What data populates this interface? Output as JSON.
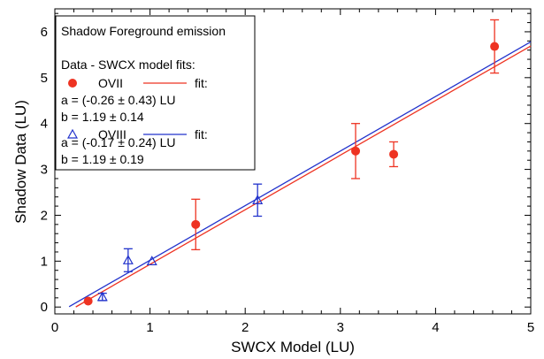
{
  "chart_data": {
    "type": "scatter",
    "xlabel": "SWCX Model (LU)",
    "ylabel": "Shadow Data (LU)",
    "xlim": [
      0,
      5
    ],
    "ylim": [
      -0.15,
      6.5
    ],
    "xticks": [
      0,
      1,
      2,
      3,
      4,
      5
    ],
    "yticks": [
      0,
      1,
      2,
      3,
      4,
      5,
      6
    ],
    "grid": false,
    "legend_placement": "top-left",
    "series": [
      {
        "name": "OVII",
        "marker": "filled-circle",
        "color": "#ee3322",
        "points": [
          {
            "x": 0.35,
            "y": 0.13,
            "err": 0.0
          },
          {
            "x": 1.48,
            "y": 1.8,
            "err": 0.55
          },
          {
            "x": 3.16,
            "y": 3.4,
            "err": 0.6
          },
          {
            "x": 3.56,
            "y": 3.33,
            "err": 0.27
          },
          {
            "x": 4.62,
            "y": 5.68,
            "err": 0.58
          }
        ],
        "fit": {
          "a": -0.26,
          "b": 1.19
        }
      },
      {
        "name": "OVIII",
        "marker": "open-triangle",
        "color": "#2233cc",
        "points": [
          {
            "x": 0.5,
            "y": 0.22,
            "err": 0.08
          },
          {
            "x": 0.77,
            "y": 1.02,
            "err": 0.25
          },
          {
            "x": 1.02,
            "y": 1.0,
            "err": 0.0
          },
          {
            "x": 2.13,
            "y": 2.33,
            "err": 0.35
          }
        ],
        "fit": {
          "a": -0.17,
          "b": 1.19
        }
      }
    ],
    "fit_lines": [
      {
        "series": "OVII",
        "x_range": [
          0.22,
          5.0
        ],
        "color": "#ee3322"
      },
      {
        "series": "OVIII",
        "x_range": [
          0.15,
          5.0
        ],
        "color": "#2233cc"
      }
    ],
    "legend": {
      "title": "Shadow Foreground emission",
      "subtitle": "Data - SWCX model fits:",
      "ovii_label": "OVII",
      "ovii_fit_label": "fit:",
      "ovii_a": "a = (-0.26 ± 0.43) LU",
      "ovii_b": "b = 1.19 ± 0.14",
      "oviii_label": "OVIII",
      "oviii_fit_label": "fit:",
      "oviii_a": "a = (-0.17 ± 0.24) LU",
      "oviii_b": "b = 1.19 ± 0.19"
    }
  }
}
